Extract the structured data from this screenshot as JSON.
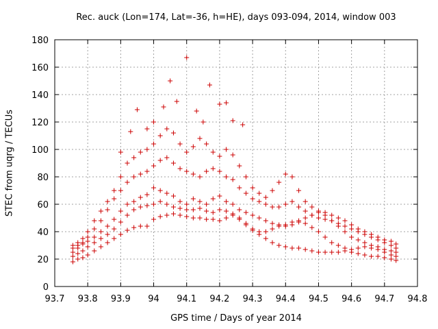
{
  "chart_data": {
    "type": "scatter",
    "title": "Rec. auck (Lon=174, Lat=-36, h=HE), days 093-094, 2014, window 003",
    "xlabel": "GPS time / Days of year 2014",
    "ylabel": "STEC from uqrg / TECUs",
    "xlim": [
      93.7,
      94.8
    ],
    "ylim": [
      0,
      180
    ],
    "xticks": [
      "93.7",
      "93.8",
      "93.9",
      "94",
      "94.1",
      "94.2",
      "94.3",
      "94.4",
      "94.5",
      "94.6",
      "94.7",
      "94.8"
    ],
    "yticks": [
      "0",
      "20",
      "40",
      "60",
      "80",
      "100",
      "120",
      "140",
      "160",
      "180"
    ],
    "grid": true,
    "marker": "plus",
    "color": "#cc0000",
    "series": [
      {
        "x": [
          93.755,
          93.77,
          93.785,
          93.8,
          93.82,
          93.84,
          93.86,
          93.88,
          93.9,
          93.92,
          93.94,
          93.96,
          93.98,
          94.0,
          94.02,
          94.04,
          94.06,
          94.08,
          94.1,
          94.12,
          94.14,
          94.16,
          94.18,
          94.2,
          94.22,
          94.24,
          94.26,
          94.28,
          94.3,
          94.32,
          94.34,
          94.36,
          94.38,
          94.4,
          94.42,
          94.44,
          94.46,
          94.48,
          94.5,
          94.52,
          94.54,
          94.56,
          94.58,
          94.6,
          94.62,
          94.64,
          94.66,
          94.68,
          94.7,
          94.72,
          94.735
        ],
        "y": [
          18,
          20,
          21,
          23,
          26,
          29,
          32,
          35,
          38,
          41,
          43,
          44,
          44,
          49,
          51,
          52,
          53,
          52,
          51,
          50,
          50,
          49,
          49,
          48,
          50,
          52,
          49,
          45,
          41,
          38,
          35,
          32,
          30,
          29,
          28,
          28,
          27,
          26,
          25,
          25,
          25,
          25,
          26,
          25,
          24,
          23,
          22,
          22,
          21,
          20,
          19
        ]
      },
      {
        "x": [
          93.755,
          93.77,
          93.785,
          93.8,
          93.82,
          93.84,
          93.86,
          93.88,
          93.9,
          93.92,
          93.94,
          93.96,
          93.98,
          94.0,
          94.02,
          94.04,
          94.06,
          94.08,
          94.1,
          94.12,
          94.14,
          94.16,
          94.18,
          94.2,
          94.22,
          94.24,
          94.26,
          94.28,
          94.3,
          94.32,
          94.34,
          94.36,
          94.38,
          94.4,
          94.42,
          94.44,
          94.46,
          94.48,
          94.5,
          94.52,
          94.54,
          94.56,
          94.58,
          94.6,
          94.62,
          94.64,
          94.66,
          94.68,
          94.7,
          94.72,
          94.735
        ],
        "y": [
          22,
          24,
          26,
          29,
          32,
          35,
          38,
          42,
          47,
          52,
          56,
          58,
          59,
          60,
          62,
          60,
          58,
          57,
          56,
          56,
          57,
          55,
          54,
          56,
          55,
          53,
          50,
          46,
          42,
          40,
          40,
          42,
          44,
          45,
          47,
          47,
          46,
          43,
          40,
          36,
          32,
          30,
          28,
          27,
          28,
          29,
          28,
          27,
          25,
          23,
          22
        ]
      },
      {
        "x": [
          93.755,
          93.77,
          93.785,
          93.8,
          93.82,
          93.84,
          93.86,
          93.88,
          93.9,
          93.92,
          93.94,
          93.96,
          93.98,
          94.0,
          94.02,
          94.04,
          94.06,
          94.08,
          94.1,
          94.12,
          94.14,
          94.16,
          94.18,
          94.2,
          94.22,
          94.24,
          94.26,
          94.28,
          94.3,
          94.32,
          94.34,
          94.36,
          94.38,
          94.4,
          94.42,
          94.44,
          94.46,
          94.48,
          94.5,
          94.52,
          94.54,
          94.56,
          94.58,
          94.6,
          94.62,
          94.64,
          94.66,
          94.68,
          94.7,
          94.72,
          94.735
        ],
        "y": [
          25,
          28,
          31,
          33,
          36,
          40,
          44,
          49,
          55,
          60,
          62,
          65,
          67,
          72,
          70,
          68,
          66,
          62,
          60,
          64,
          62,
          60,
          64,
          66,
          62,
          60,
          56,
          54,
          52,
          50,
          48,
          46,
          45,
          44,
          45,
          48,
          50,
          52,
          54,
          52,
          48,
          44,
          40,
          36,
          34,
          32,
          30,
          29,
          27,
          26,
          25
        ]
      },
      {
        "x": [
          93.755,
          93.77,
          93.785,
          93.8,
          93.82,
          93.84,
          93.86,
          93.88,
          93.9,
          93.92,
          93.94,
          93.96,
          93.98,
          94.0,
          94.02,
          94.04,
          94.06,
          94.08,
          94.1,
          94.12,
          94.14,
          94.16,
          94.18,
          94.2,
          94.22,
          94.24,
          94.26,
          94.28,
          94.3,
          94.32,
          94.34,
          94.36,
          94.38,
          94.4,
          94.42,
          94.44,
          94.46,
          94.48,
          94.5,
          94.52,
          94.54,
          94.56,
          94.58,
          94.6,
          94.62,
          94.64,
          94.66,
          94.68,
          94.7,
          94.72,
          94.735
        ],
        "y": [
          28,
          30,
          32,
          36,
          42,
          48,
          56,
          64,
          70,
          76,
          80,
          82,
          84,
          88,
          92,
          94,
          90,
          86,
          84,
          82,
          80,
          84,
          86,
          84,
          80,
          78,
          72,
          68,
          64,
          62,
          60,
          58,
          58,
          60,
          62,
          58,
          55,
          52,
          50,
          49,
          48,
          46,
          44,
          42,
          40,
          38,
          36,
          34,
          32,
          30,
          28
        ]
      },
      {
        "x": [
          93.755,
          93.77,
          93.785,
          93.8,
          93.82,
          93.84,
          93.86,
          93.88,
          93.9,
          93.92,
          93.94,
          93.96,
          93.98,
          94.0,
          94.02,
          94.04,
          94.06,
          94.08,
          94.1,
          94.12,
          94.14,
          94.16,
          94.18,
          94.2,
          94.22,
          94.24,
          94.26,
          94.28,
          94.3,
          94.32,
          94.34,
          94.36,
          94.38,
          94.4,
          94.42,
          94.44,
          94.46,
          94.48,
          94.5,
          94.52,
          94.54,
          94.56,
          94.58,
          94.6,
          94.62,
          94.64,
          94.66,
          94.68,
          94.7,
          94.72,
          94.735
        ],
        "y": [
          30,
          32,
          35,
          40,
          48,
          55,
          62,
          70,
          80,
          90,
          94,
          98,
          100,
          104,
          110,
          115,
          112,
          104,
          98,
          102,
          108,
          104,
          98,
          95,
          100,
          96,
          88,
          80,
          72,
          68,
          65,
          70,
          76,
          82,
          80,
          70,
          62,
          58,
          55,
          54,
          52,
          50,
          48,
          45,
          42,
          40,
          38,
          36,
          34,
          33,
          31
        ]
      },
      {
        "x": [
          93.9,
          93.93,
          93.95,
          93.98,
          94.0,
          94.03,
          94.05,
          94.07,
          94.1,
          94.13,
          94.15,
          94.17,
          94.2,
          94.22,
          94.24,
          94.27
        ],
        "y": [
          98,
          113,
          129,
          115,
          120,
          131,
          150,
          135,
          167,
          128,
          120,
          147,
          133,
          134,
          121,
          118
        ]
      }
    ]
  }
}
